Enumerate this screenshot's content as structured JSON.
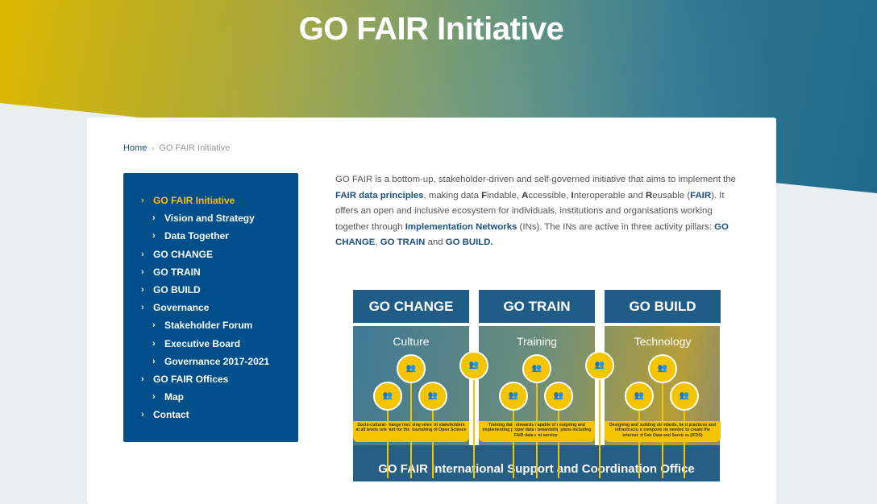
{
  "header": {
    "title": "GO FAIR Initiative"
  },
  "breadcrumb": {
    "home": "Home",
    "separator": "›",
    "current": "GO FAIR Initiative"
  },
  "sidebar": {
    "items": [
      {
        "label": "GO FAIR Initiative",
        "level": 0,
        "active": true
      },
      {
        "label": "Vision and Strategy",
        "level": 1
      },
      {
        "label": "Data Together",
        "level": 1
      },
      {
        "label": "GO CHANGE",
        "level": 0
      },
      {
        "label": "GO TRAIN",
        "level": 0
      },
      {
        "label": "GO BUILD",
        "level": 0
      },
      {
        "label": "Governance",
        "level": 0
      },
      {
        "label": "Stakeholder Forum",
        "level": 1
      },
      {
        "label": "Executive Board",
        "level": 1
      },
      {
        "label": "Governance 2017-2021",
        "level": 1
      },
      {
        "label": "GO FAIR Offices",
        "level": 0
      },
      {
        "label": "Map",
        "level": 1
      },
      {
        "label": "Contact",
        "level": 0
      }
    ],
    "chevron": "›"
  },
  "intro": {
    "p1": "GO FAIR is a bottom-up, stakeholder-driven and self-governed initiative that aims to implement the ",
    "link_fair": "FAIR data principles",
    "p2": ", making data ",
    "F": "F",
    "p3": "indable, ",
    "A": "A",
    "p4": "ccessible, ",
    "I": "I",
    "p5": "nteroperable and ",
    "R": "R",
    "p6": "eusable (",
    "fair": "FAIR",
    "p7": "). It offers an open and inclusive ecosystem for individuals, institutions and organisations working together through ",
    "link_in": "Implementation Networks",
    "p8": " (INs). The INs are active in three activity pillars: ",
    "link_change": "GO CHANGE",
    "p9": ", ",
    "link_train": "GO TRAIN",
    "p10": " and ",
    "link_build": "GO BUILD."
  },
  "infographic": {
    "pillars": [
      {
        "header": "GO CHANGE",
        "label": "Culture",
        "desc": "Socio-cultural change involving relevant stakeholders at all levels relevant for the flourishing of Open Science"
      },
      {
        "header": "GO TRAIN",
        "label": "Training",
        "desc": "Training data stewards capable of designing and implementing proper data stewardship plans including FAIR data and services"
      },
      {
        "header": "GO BUILD",
        "label": "Technology",
        "desc": "Designing and building standards, best practices and infrastructure components needed to create the Internet of Fair Data and Services (IFDS)"
      }
    ],
    "footer": "GO FAIR International Support and Coordination Office",
    "accent": "#f4c400"
  },
  "colors": {
    "sidebar": "#004f8b",
    "active": "#f5c400",
    "link": "#1d4f7c"
  }
}
